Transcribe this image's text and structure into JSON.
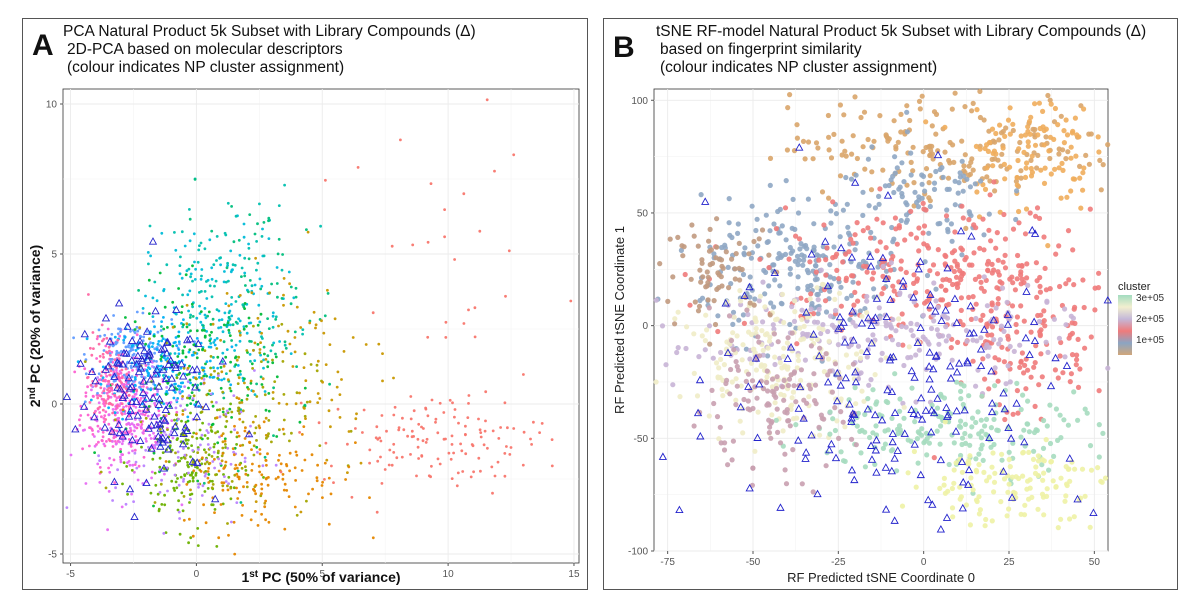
{
  "panels": {
    "a": {
      "letter": "A",
      "title": "PCA Natural Product 5k Subset with Library Compounds (Δ)",
      "subtitle1": "2D-PCA based on molecular descriptors",
      "subtitle2": "(colour indicates NP cluster assignment)",
      "xlabel_main": "1",
      "xlabel_sup": "st",
      "xlabel_rest": " PC (50% of variance)",
      "ylabel_main": "2",
      "ylabel_sup": "nd",
      "ylabel_rest": " PC (20% of variance)"
    },
    "b": {
      "letter": "B",
      "title": "tSNE RF-model Natural Product 5k Subset with Library Compounds (Δ)",
      "subtitle1": "based on fingerprint similarity",
      "subtitle2": "(colour indicates NP cluster assignment)",
      "xlabel": "RF Predicted tSNE Coordinate 0",
      "ylabel": "RF Predicted tSNE Coordinate 1",
      "legend_title": "cluster",
      "legend_ticks": [
        "3e+05",
        "2e+05",
        "1e+05"
      ]
    }
  },
  "colors": {
    "library_marker": "#2222cc",
    "panel_bg": "#ffffff",
    "grid": "#ebebeb"
  },
  "chart_data": [
    {
      "type": "scatter",
      "title": "PCA Natural Product 5k Subset with Library Compounds (Δ)",
      "xlabel": "1st PC (50% of variance)",
      "ylabel": "2nd PC (20% of variance)",
      "xlim": [
        -5.3,
        15.2
      ],
      "ylim": [
        -5.3,
        10.5
      ],
      "xticks": [
        -5,
        0,
        5,
        10,
        15
      ],
      "yticks": [
        -5,
        0,
        5,
        10
      ],
      "grid": true,
      "series": [
        {
          "kind": "np_points",
          "colors": [
            "#f8766d",
            "#e58700",
            "#c99800",
            "#a3a500",
            "#6bb100",
            "#00ba38",
            "#00bf7d",
            "#00c0af",
            "#00bcd8",
            "#00b0f6",
            "#619cff",
            "#b983ff",
            "#e76bf3",
            "#fd61d1",
            "#ff67a4"
          ]
        },
        {
          "kind": "library_compounds",
          "marker": "triangle-open"
        }
      ],
      "clusters": [
        {
          "color": "#fd61d1",
          "cx": -3.0,
          "cy": 0.0,
          "sx": 0.8,
          "sy": 1.0,
          "n": 260
        },
        {
          "color": "#e76bf3",
          "cx": -2.6,
          "cy": -0.8,
          "sx": 0.9,
          "sy": 1.0,
          "n": 160
        },
        {
          "color": "#619cff",
          "cx": -2.6,
          "cy": 1.6,
          "sx": 0.8,
          "sy": 0.6,
          "n": 160
        },
        {
          "color": "#00b0f6",
          "cx": -1.2,
          "cy": 1.2,
          "sx": 1.2,
          "sy": 0.9,
          "n": 170
        },
        {
          "color": "#00bcd8",
          "cx": 0.8,
          "cy": 3.0,
          "sx": 1.3,
          "sy": 1.4,
          "n": 140
        },
        {
          "color": "#00c0af",
          "cx": 1.0,
          "cy": 4.0,
          "sx": 1.5,
          "sy": 1.6,
          "n": 90
        },
        {
          "color": "#00bf7d",
          "cx": 2.5,
          "cy": 3.0,
          "sx": 1.6,
          "sy": 2.0,
          "n": 80
        },
        {
          "color": "#00ba38",
          "cx": 0.2,
          "cy": 1.0,
          "sx": 1.5,
          "sy": 1.5,
          "n": 160
        },
        {
          "color": "#6bb100",
          "cx": -0.3,
          "cy": -2.0,
          "sx": 1.0,
          "sy": 1.1,
          "n": 170
        },
        {
          "color": "#a3a500",
          "cx": 1.0,
          "cy": -0.5,
          "sx": 1.8,
          "sy": 1.5,
          "n": 140
        },
        {
          "color": "#b983ff",
          "cx": -0.5,
          "cy": -1.5,
          "sx": 1.4,
          "sy": 1.3,
          "n": 120
        },
        {
          "color": "#c99800",
          "cx": 3.5,
          "cy": 1.5,
          "sx": 2.2,
          "sy": 2.0,
          "n": 110
        },
        {
          "color": "#e58700",
          "cx": 2.5,
          "cy": -2.3,
          "sx": 1.6,
          "sy": 1.0,
          "n": 150
        },
        {
          "color": "#f8766d",
          "cx": 9.5,
          "cy": -1.2,
          "sx": 2.2,
          "sy": 0.8,
          "n": 140
        },
        {
          "color": "#f8766d",
          "cx": 10.0,
          "cy": 5.0,
          "sx": 3.0,
          "sy": 2.5,
          "n": 30
        },
        {
          "color": "#ff67a4",
          "cx": -3.5,
          "cy": 0.8,
          "sx": 0.4,
          "sy": 0.8,
          "n": 100
        }
      ],
      "library_region": {
        "cx": -2.2,
        "cy": 0.4,
        "sx": 1.3,
        "sy": 1.4,
        "n": 130
      }
    },
    {
      "type": "scatter",
      "title": "tSNE RF-model Natural Product 5k Subset with Library Compounds (Δ)",
      "xlabel": "RF Predicted tSNE Coordinate 0",
      "ylabel": "RF Predicted tSNE Coordinate 1",
      "xlim": [
        -79,
        54
      ],
      "ylim": [
        -100,
        105
      ],
      "xticks": [
        -75,
        -50,
        -25,
        0,
        25,
        50
      ],
      "yticks": [
        -100,
        -50,
        0,
        50,
        100
      ],
      "grid": true,
      "legend": {
        "title": "cluster",
        "position": "right",
        "ticks": [
          "3e+05",
          "2e+05",
          "1e+05"
        ],
        "gradient": [
          "#d1a67a",
          "#8ba5c3",
          "#ef7b7b",
          "#c4b8d8",
          "#f2efcf",
          "#a3dcc0"
        ]
      },
      "series": [
        {
          "kind": "np_points",
          "color_scale": "cluster"
        },
        {
          "kind": "library_compounds",
          "marker": "triangle-open"
        }
      ],
      "regions": [
        {
          "color": "#d9a56a",
          "cx": 10,
          "cy": 80,
          "sx": 25,
          "sy": 12,
          "n": 200
        },
        {
          "color": "#f0ad5c",
          "cx": 30,
          "cy": 78,
          "sx": 10,
          "sy": 14,
          "n": 110
        },
        {
          "color": "#8fa7c4",
          "cx": -35,
          "cy": 25,
          "sx": 15,
          "sy": 15,
          "n": 220
        },
        {
          "color": "#8fa7c4",
          "cx": 0,
          "cy": 55,
          "sx": 12,
          "sy": 12,
          "n": 90
        },
        {
          "color": "#ef7b7b",
          "cx": 0,
          "cy": 25,
          "sx": 25,
          "sy": 14,
          "n": 260
        },
        {
          "color": "#ef7b7b",
          "cx": 30,
          "cy": -5,
          "sx": 12,
          "sy": 20,
          "n": 150
        },
        {
          "color": "#c8b4d6",
          "cx": -15,
          "cy": -5,
          "sx": 30,
          "sy": 12,
          "n": 220
        },
        {
          "color": "#f0ecc6",
          "cx": -40,
          "cy": -15,
          "sx": 15,
          "sy": 15,
          "n": 200
        },
        {
          "color": "#a6dcbf",
          "cx": 10,
          "cy": -45,
          "sx": 22,
          "sy": 10,
          "n": 200
        },
        {
          "color": "#eef2a5",
          "cx": 25,
          "cy": -70,
          "sx": 15,
          "sy": 9,
          "n": 130
        },
        {
          "color": "#c9a0b0",
          "cx": -45,
          "cy": -35,
          "sx": 12,
          "sy": 15,
          "n": 130
        },
        {
          "color": "#c19a7f",
          "cx": -60,
          "cy": 25,
          "sx": 8,
          "sy": 10,
          "n": 70
        }
      ],
      "library_region": {
        "cx": -5,
        "cy": -20,
        "sx": 28,
        "sy": 35,
        "n": 200
      }
    }
  ]
}
